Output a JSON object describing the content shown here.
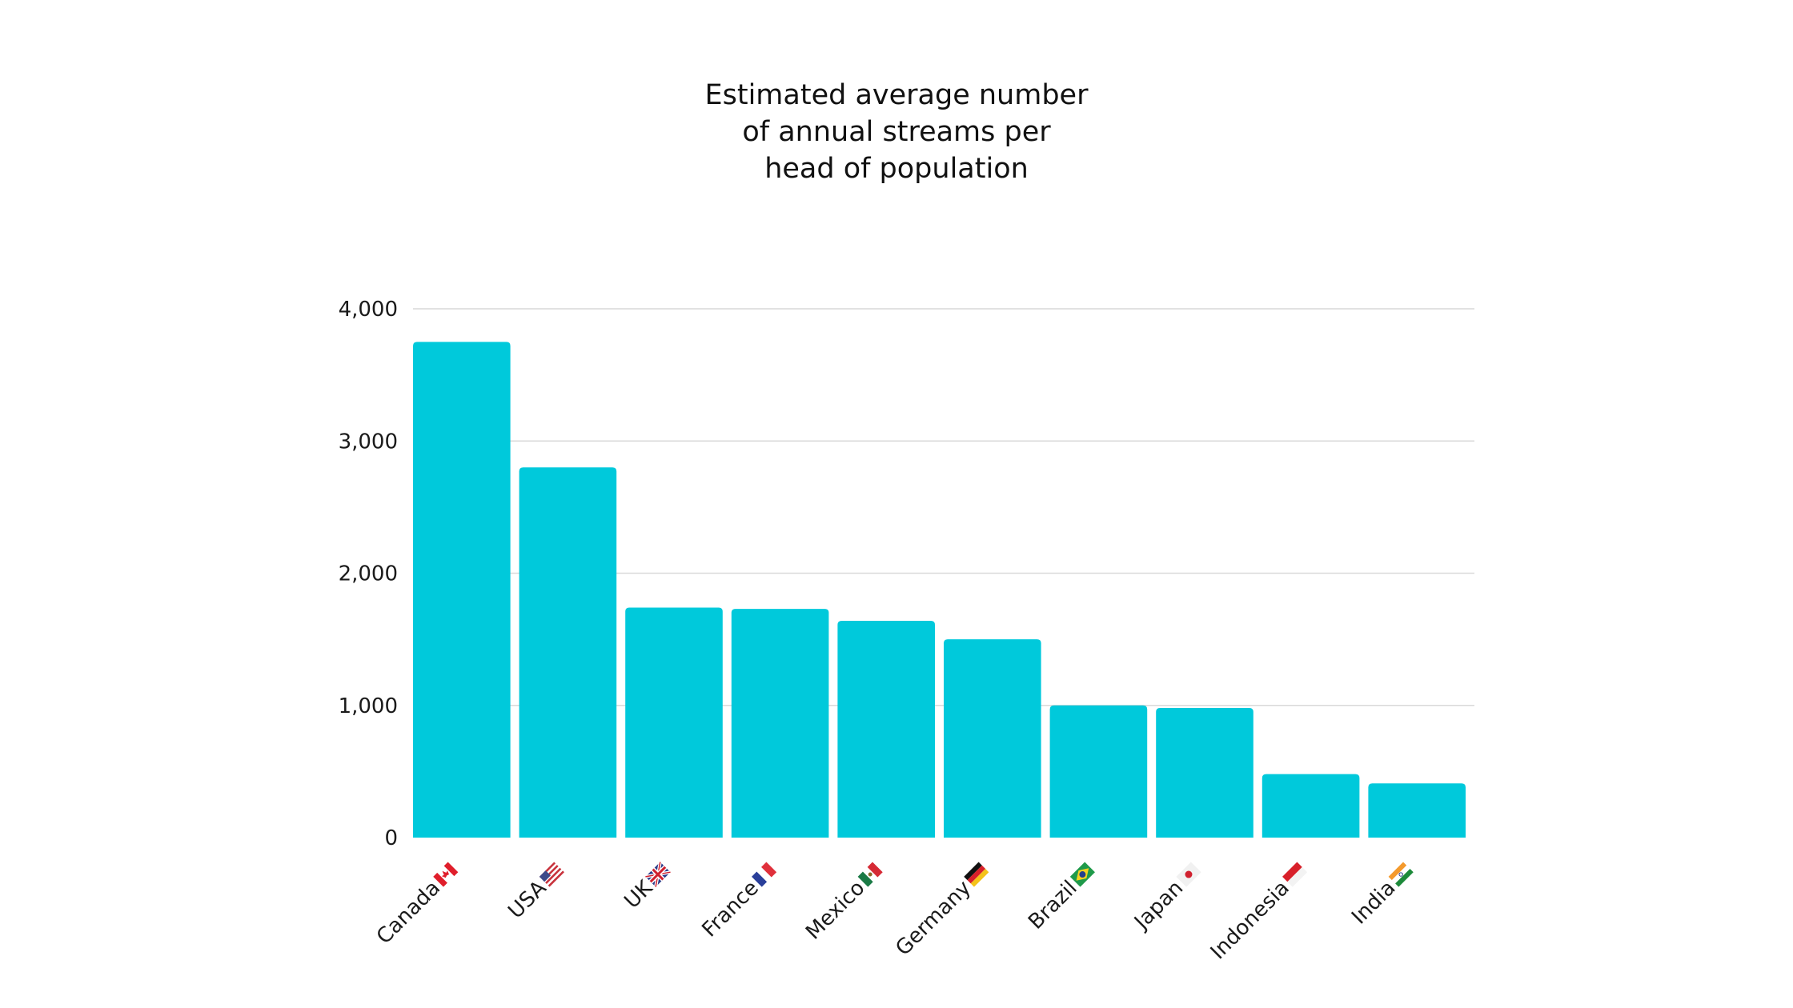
{
  "chart_data": {
    "type": "bar",
    "title_lines": [
      "Estimated average number",
      "of annual streams per",
      "head of population"
    ],
    "categories": [
      "Canada",
      "USA",
      "UK",
      "France",
      "Mexico",
      "Germany",
      "Brazil",
      "Japan",
      "Indonesia",
      "India"
    ],
    "category_flags": [
      "flag-canada-icon",
      "flag-usa-icon",
      "flag-uk-icon",
      "flag-france-icon",
      "flag-mexico-icon",
      "flag-germany-icon",
      "flag-brazil-icon",
      "flag-japan-icon",
      "flag-indonesia-icon",
      "flag-india-icon"
    ],
    "values": [
      3750,
      2800,
      1740,
      1730,
      1640,
      1500,
      1000,
      980,
      480,
      410
    ],
    "ylim": [
      0,
      4000
    ],
    "yticks": [
      0,
      1000,
      2000,
      3000,
      4000
    ],
    "ytick_labels": [
      "0",
      "1,000",
      "2,000",
      "3,000",
      "4,000"
    ],
    "xlabel": "",
    "ylabel": "",
    "grid": true,
    "bar_color": "#00C9DB",
    "grid_color": "#d9d9d9"
  }
}
